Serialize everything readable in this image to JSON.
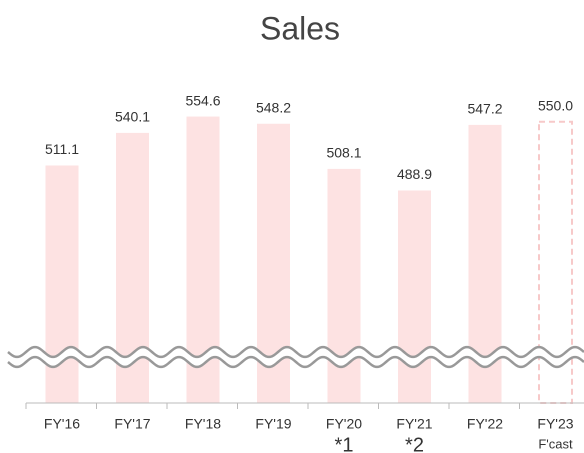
{
  "chart_data": {
    "type": "bar",
    "title": "Sales",
    "categories": [
      "FY'16",
      "FY'17",
      "FY'18",
      "FY'19",
      "FY'20",
      "FY'21",
      "FY'22",
      "FY'23"
    ],
    "category_notes": [
      null,
      null,
      null,
      null,
      "*1",
      "*2",
      null,
      "F'cast"
    ],
    "values": [
      511.1,
      540.1,
      554.6,
      548.2,
      508.1,
      488.9,
      547.2,
      550.0
    ],
    "value_labels": [
      "511.1",
      "540.1",
      "554.6",
      "548.2",
      "508.1",
      "488.9",
      "547.2",
      "550.0"
    ],
    "bar_styles": [
      "solid",
      "solid",
      "solid",
      "solid",
      "solid",
      "solid",
      "solid",
      "dashed"
    ],
    "color": "#fde2e2",
    "ylim": [
      300,
      580
    ],
    "axis_break": true
  }
}
